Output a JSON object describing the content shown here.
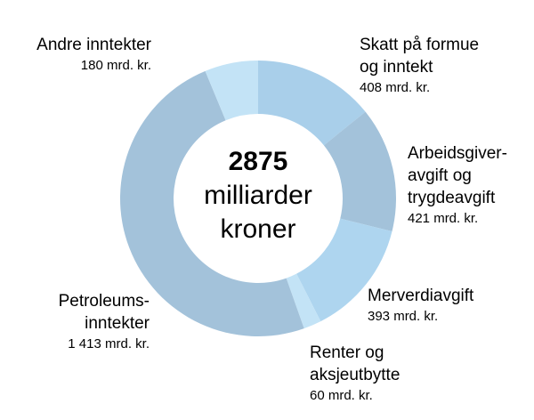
{
  "chart_data": {
    "type": "pie",
    "center": {
      "total": "2875",
      "unit": "milliarder\nkroner"
    },
    "slices": [
      {
        "name": "Skatt på formue\nog inntekt",
        "value": 408,
        "value_label": "408 mrd. kr.",
        "color": "#a9cfea"
      },
      {
        "name": "Arbeidsgiver-\navgift og\ntrygdeavgift",
        "value": 421,
        "value_label": "421 mrd. kr.",
        "color": "#a3c2da"
      },
      {
        "name": "Merverdiavgift",
        "value": 393,
        "value_label": "393 mrd. kr.",
        "color": "#aed5ef"
      },
      {
        "name": "Renter og\naksjeutbytte",
        "value": 60,
        "value_label": "60 mrd. kr.",
        "color": "#c3e3f6"
      },
      {
        "name": "Petroleums-\ninntekter",
        "value": 1413,
        "value_label": "1 413 mrd. kr.",
        "color": "#a3c2da"
      },
      {
        "name": "Andre inntekter",
        "value": 180,
        "value_label": "180 mrd. kr.",
        "color": "#c3e3f6"
      }
    ]
  }
}
